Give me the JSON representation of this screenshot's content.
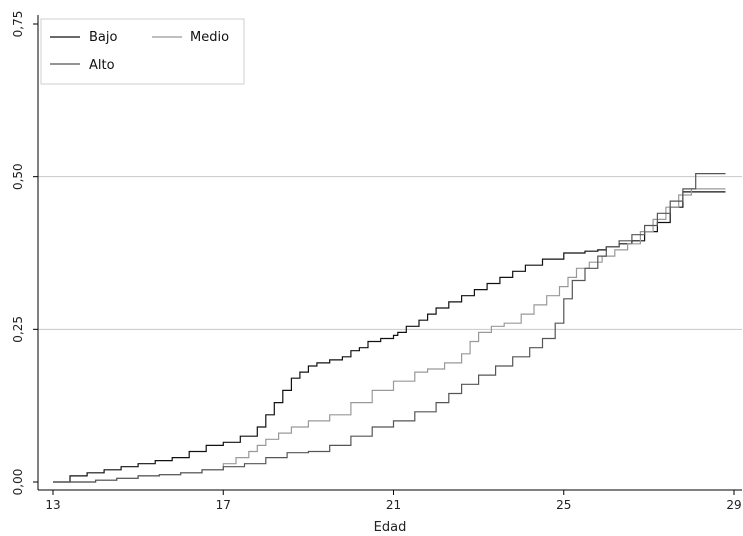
{
  "chart_data": {
    "type": "line",
    "xlabel": "Edad",
    "ylabel": "",
    "xlim": [
      13,
      29
    ],
    "ylim": [
      0,
      0.75
    ],
    "x_ticks": [
      13,
      17,
      21,
      25,
      29
    ],
    "x_tick_labels": [
      "13",
      "17",
      "21",
      "25",
      "29"
    ],
    "y_ticks": [
      0,
      0.25,
      0.5,
      0.75
    ],
    "y_tick_labels": [
      "0,00",
      "0,25",
      "0,50",
      "0,75"
    ],
    "gridlines_y": [
      0.25,
      0.5
    ],
    "legend_position": "top-left",
    "series": [
      {
        "name": "Bajo",
        "color": "#111111",
        "step": true,
        "x": [
          13.0,
          13.4,
          13.8,
          14.2,
          14.6,
          15.0,
          15.4,
          15.8,
          16.2,
          16.6,
          17.0,
          17.4,
          17.8,
          18.0,
          18.2,
          18.4,
          18.6,
          18.8,
          19.0,
          19.2,
          19.5,
          19.8,
          20.0,
          20.2,
          20.4,
          20.7,
          21.0,
          21.1,
          21.3,
          21.6,
          21.8,
          22.0,
          22.3,
          22.6,
          22.9,
          23.2,
          23.5,
          23.8,
          24.1,
          24.5,
          25.0,
          25.5,
          25.8,
          26.0,
          26.3,
          26.6,
          26.9,
          27.2,
          27.5,
          27.8,
          28.2,
          28.8
        ],
        "y": [
          0.0,
          0.01,
          0.015,
          0.02,
          0.025,
          0.03,
          0.035,
          0.04,
          0.05,
          0.06,
          0.065,
          0.075,
          0.09,
          0.11,
          0.13,
          0.15,
          0.17,
          0.18,
          0.19,
          0.195,
          0.2,
          0.205,
          0.215,
          0.22,
          0.23,
          0.235,
          0.24,
          0.245,
          0.255,
          0.265,
          0.275,
          0.285,
          0.295,
          0.305,
          0.315,
          0.325,
          0.335,
          0.345,
          0.355,
          0.365,
          0.375,
          0.378,
          0.38,
          0.385,
          0.39,
          0.395,
          0.41,
          0.425,
          0.45,
          0.475,
          0.475,
          0.475
        ]
      },
      {
        "name": "Medio",
        "color": "#999999",
        "step": true,
        "x": [
          13.0,
          14.0,
          14.5,
          15.0,
          15.5,
          16.0,
          16.5,
          17.0,
          17.3,
          17.6,
          17.8,
          18.0,
          18.3,
          18.6,
          19.0,
          19.5,
          20.0,
          20.5,
          21.0,
          21.5,
          21.8,
          22.2,
          22.6,
          22.8,
          23.0,
          23.3,
          23.6,
          24.0,
          24.3,
          24.6,
          24.9,
          25.1,
          25.3,
          25.6,
          25.9,
          26.2,
          26.5,
          26.8,
          27.1,
          27.4,
          27.7,
          28.0,
          28.8
        ],
        "y": [
          0.0,
          0.003,
          0.006,
          0.01,
          0.012,
          0.015,
          0.02,
          0.03,
          0.04,
          0.05,
          0.06,
          0.07,
          0.08,
          0.09,
          0.1,
          0.11,
          0.13,
          0.15,
          0.165,
          0.18,
          0.185,
          0.195,
          0.21,
          0.23,
          0.245,
          0.255,
          0.26,
          0.275,
          0.29,
          0.305,
          0.32,
          0.335,
          0.35,
          0.36,
          0.37,
          0.38,
          0.39,
          0.41,
          0.43,
          0.45,
          0.47,
          0.48,
          0.48
        ]
      },
      {
        "name": "Alto",
        "color": "#555555",
        "step": true,
        "x": [
          13.0,
          14.0,
          14.5,
          15.0,
          15.5,
          16.0,
          16.5,
          17.0,
          17.5,
          18.0,
          18.5,
          19.0,
          19.5,
          20.0,
          20.5,
          21.0,
          21.5,
          22.0,
          22.3,
          22.6,
          23.0,
          23.4,
          23.8,
          24.2,
          24.5,
          24.8,
          25.0,
          25.2,
          25.5,
          25.8,
          26.0,
          26.3,
          26.6,
          26.9,
          27.2,
          27.5,
          27.8,
          28.1,
          28.8
        ],
        "y": [
          0.0,
          0.003,
          0.006,
          0.01,
          0.012,
          0.015,
          0.02,
          0.025,
          0.03,
          0.04,
          0.048,
          0.05,
          0.06,
          0.075,
          0.09,
          0.1,
          0.115,
          0.13,
          0.145,
          0.16,
          0.175,
          0.19,
          0.205,
          0.22,
          0.235,
          0.26,
          0.3,
          0.33,
          0.35,
          0.37,
          0.385,
          0.395,
          0.405,
          0.42,
          0.44,
          0.46,
          0.48,
          0.505,
          0.505
        ]
      }
    ]
  }
}
